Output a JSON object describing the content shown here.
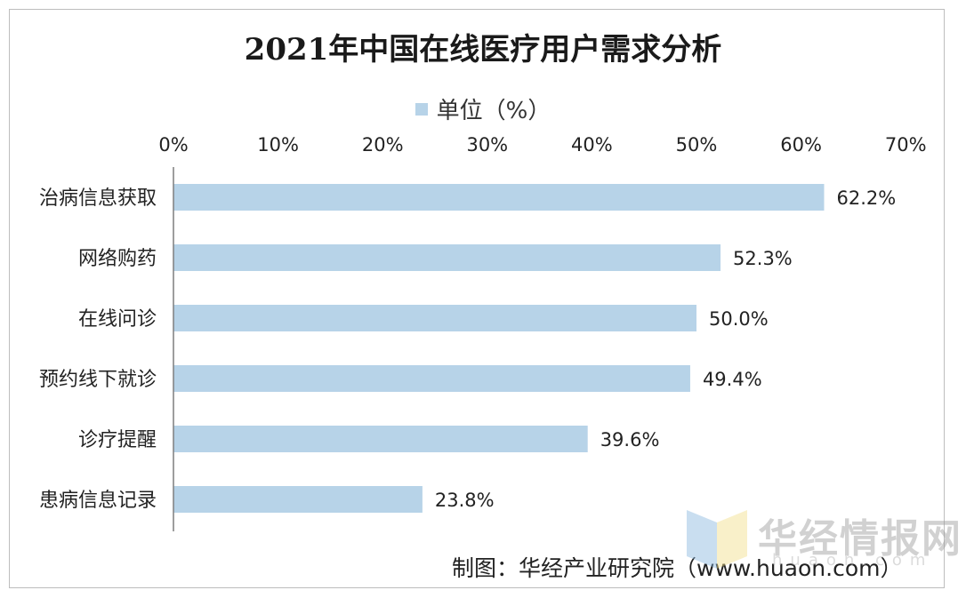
{
  "chart_data": {
    "type": "bar",
    "orientation": "horizontal",
    "title": "2021年中国在线医疗用户需求分析",
    "categories": [
      "治病信息获取",
      "网络购药",
      "在线问诊",
      "预约线下就诊",
      "诊疗提醒",
      "患病信息记录"
    ],
    "series": [
      {
        "name": "单位（%）",
        "values": [
          62.2,
          52.3,
          50.0,
          49.4,
          39.6,
          23.8
        ]
      }
    ],
    "data_labels": [
      "62.2%",
      "52.3%",
      "50.0%",
      "49.4%",
      "39.6%",
      "23.8%"
    ],
    "xlim": [
      0,
      70
    ],
    "xticks": [
      "0%",
      "10%",
      "20%",
      "30%",
      "40%",
      "50%",
      "60%",
      "70%"
    ],
    "tick_position": "top",
    "legend_position": "top",
    "grid": false,
    "bar_color": "#b7d3e8"
  },
  "footer": "制图：华经产业研究院（www.huaon.com）",
  "watermark": {
    "text": "华经情报网",
    "sub": "huaon.com"
  }
}
